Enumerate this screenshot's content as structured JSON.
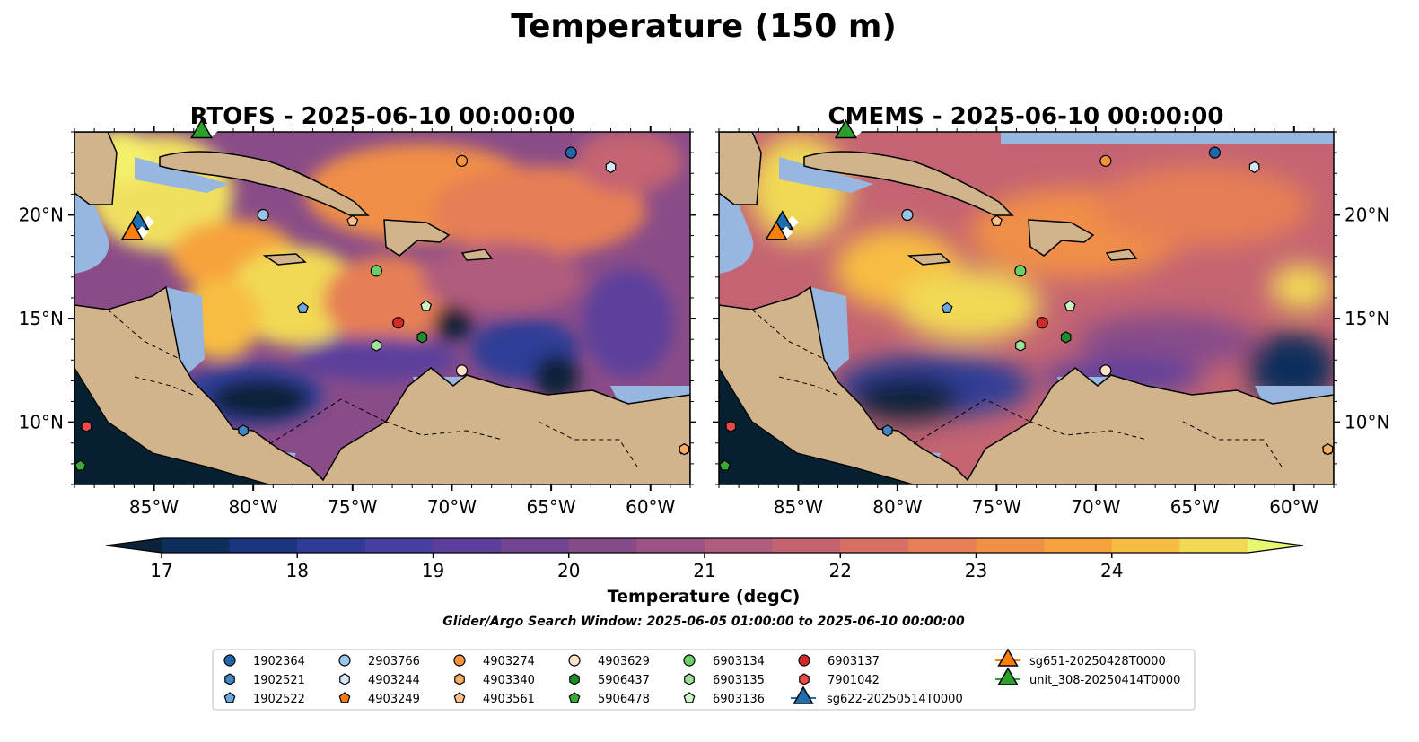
{
  "figure": {
    "suptitle": "Temperature (150 m)",
    "search_window_note": "Glider/Argo Search Window: 2025-06-05 01:00:00 to 2025-06-10 00:00:00"
  },
  "chart_data": [
    {
      "type": "heatmap",
      "title": "RTOFS - 2025-06-10 00:00:00",
      "variable": "Temperature (degC)",
      "xlim": [
        -89.0,
        -58.0
      ],
      "ylim": [
        7.0,
        24.0
      ],
      "xticks": [
        -85,
        -80,
        -75,
        -70,
        -65,
        -60
      ],
      "xticklabels": [
        "85°W",
        "80°W",
        "75°W",
        "70°W",
        "65°W",
        "60°W"
      ],
      "yticks": [
        10,
        15,
        20
      ],
      "yticklabels": [
        "10°N",
        "15°N",
        "20°N"
      ],
      "ytick_side": "left"
    },
    {
      "type": "heatmap",
      "title": "CMEMS - 2025-06-10 00:00:00",
      "variable": "Temperature (degC)",
      "xlim": [
        -89.0,
        -58.0
      ],
      "ylim": [
        7.0,
        24.0
      ],
      "xticks": [
        -85,
        -80,
        -75,
        -70,
        -65,
        -60
      ],
      "xticklabels": [
        "85°W",
        "80°W",
        "75°W",
        "70°W",
        "65°W",
        "60°W"
      ],
      "yticks": [
        10,
        15,
        20
      ],
      "yticklabels": [
        "10°N",
        "15°N",
        "20°N"
      ],
      "ytick_side": "right"
    }
  ],
  "colorbar": {
    "label": "Temperature (degC)",
    "min": 16.5,
    "max": 24.5,
    "step": 0.5,
    "ticks": [
      17,
      18,
      19,
      20,
      21,
      22,
      23,
      24
    ],
    "extend": "both",
    "colors": [
      "#0a2339",
      "#0e2e5c",
      "#1c3580",
      "#2f3c96",
      "#473fa0",
      "#5c3f9c",
      "#714592",
      "#864c8a",
      "#9b5484",
      "#b05c7c",
      "#c46472",
      "#d77064",
      "#e67f55",
      "#f08f46",
      "#f6a33e",
      "#f7bd43",
      "#f1d955",
      "#e8f772"
    ]
  },
  "markers": {
    "argo": [
      {
        "id": "1902364",
        "lon": -64.0,
        "lat": 23.0,
        "color": "#2166ac",
        "shape": "circle"
      },
      {
        "id": "1902521",
        "lon": -80.5,
        "lat": 9.6,
        "color": "#3f88c5",
        "shape": "hexagon"
      },
      {
        "id": "1902522",
        "lon": -77.5,
        "lat": 15.5,
        "color": "#6aa8dd",
        "shape": "pentagon"
      },
      {
        "id": "2903766",
        "lon": -79.5,
        "lat": 20.0,
        "color": "#9ac4e6",
        "shape": "circle"
      },
      {
        "id": "4903244",
        "lon": -62.0,
        "lat": 22.3,
        "color": "#d3e7f6",
        "shape": "hexagon"
      },
      {
        "id": "4903249",
        "lon": -58.3,
        "lat": 8.7,
        "color": "#ef7a12",
        "shape": "pentagon"
      },
      {
        "id": "4903274",
        "lon": -69.5,
        "lat": 22.6,
        "color": "#f6903a",
        "shape": "circle"
      },
      {
        "id": "4903340",
        "lon": -58.3,
        "lat": 8.7,
        "color": "#f9ad63",
        "shape": "hexagon"
      },
      {
        "id": "4903561",
        "lon": -75.0,
        "lat": 19.7,
        "color": "#fcc18a",
        "shape": "pentagon"
      },
      {
        "id": "4903629",
        "lon": -69.5,
        "lat": 12.5,
        "color": "#fde0c5",
        "shape": "circle"
      },
      {
        "id": "5906437",
        "lon": -71.5,
        "lat": 14.1,
        "color": "#1e8f2a",
        "shape": "hexagon"
      },
      {
        "id": "5906478",
        "lon": -88.7,
        "lat": 7.9,
        "color": "#3caa3a",
        "shape": "pentagon"
      },
      {
        "id": "6903134",
        "lon": -73.8,
        "lat": 17.3,
        "color": "#6bcd68",
        "shape": "circle"
      },
      {
        "id": "6903135",
        "lon": -73.8,
        "lat": 13.7,
        "color": "#9ee29a",
        "shape": "hexagon"
      },
      {
        "id": "6903136",
        "lon": -71.3,
        "lat": 15.6,
        "color": "#cdf4c8",
        "shape": "pentagon"
      },
      {
        "id": "6903137",
        "lon": -72.7,
        "lat": 14.8,
        "color": "#d62728",
        "shape": "circle"
      },
      {
        "id": "7901042",
        "lon": -88.4,
        "lat": 9.8,
        "color": "#ea4a4a",
        "shape": "hexagon"
      }
    ],
    "gliders": [
      {
        "id": "sg622-20250514T0000",
        "lon": -85.8,
        "lat": 19.6,
        "color": "#1f6eb0",
        "shape": "triangle"
      },
      {
        "id": "sg651-20250428T0000",
        "lon": -86.1,
        "lat": 19.1,
        "color": "#ff7f0e",
        "shape": "triangle"
      },
      {
        "id": "unit_308-20250414T0000",
        "lon": -82.6,
        "lat": 24.0,
        "color": "#2ca02c",
        "shape": "triangle"
      }
    ]
  },
  "colors": {
    "land": "#d2b48c",
    "shallow": "#97b6e0",
    "deep": "#06202f"
  }
}
